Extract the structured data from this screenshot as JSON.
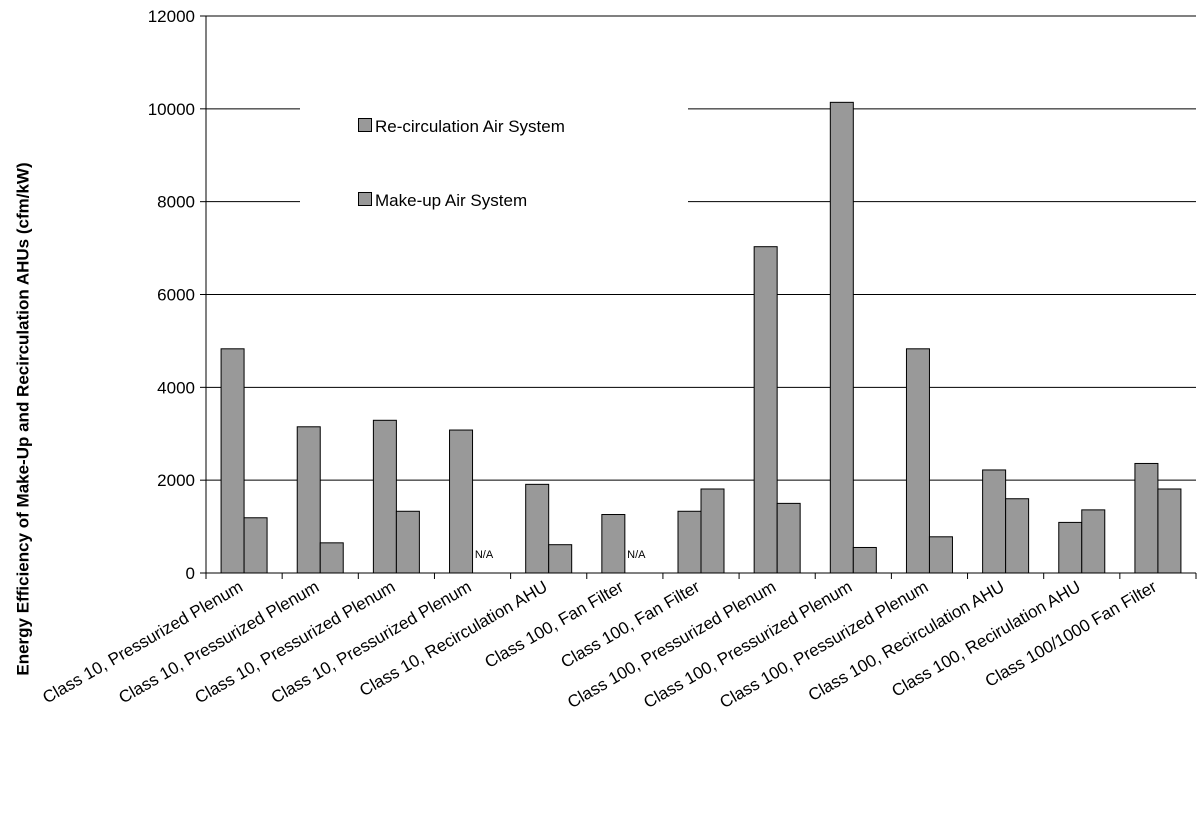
{
  "chart_data": {
    "type": "bar",
    "title": "",
    "xlabel": "",
    "ylabel": "Energy Efficiency of Make-Up and Recirculation AHUs (cfm/kW)",
    "ylim": [
      0,
      12000
    ],
    "yticks": [
      0,
      2000,
      4000,
      6000,
      8000,
      10000,
      12000
    ],
    "grid": true,
    "legend_position": "top-left",
    "categories": [
      "Class 10, Pressurized Plenum",
      "Class 10, Pressurized Plenum",
      "Class 10, Pressurized Plenum",
      "Class 10, Pressurized Plenum",
      "Class 10, Recirculation AHU",
      "Class 100, Fan Filter",
      "Class 100, Fan Filter",
      "Class 100, Pressurized Plenum",
      "Class 100, Pressurized Plenum",
      "Class 100, Pressurized Plenum",
      "Class 100, Recirculation AHU",
      "Class 100, Recirulation AHU",
      "Class 100/1000  Fan Filter"
    ],
    "series": [
      {
        "name": "Re-circulation Air System",
        "color": "#999999",
        "values": [
          4830,
          3150,
          3290,
          3080,
          1910,
          1260,
          1330,
          7030,
          10140,
          4830,
          2220,
          1090,
          2360
        ]
      },
      {
        "name": "Make-up Air System",
        "color": "#999999",
        "values": [
          1190,
          650,
          1330,
          null,
          610,
          null,
          1810,
          1500,
          550,
          780,
          1600,
          1360,
          1810
        ]
      }
    ],
    "annotations": [
      {
        "category_index": 3,
        "series_index": 1,
        "text": "N/A"
      },
      {
        "category_index": 5,
        "series_index": 1,
        "text": "N/A"
      }
    ]
  }
}
